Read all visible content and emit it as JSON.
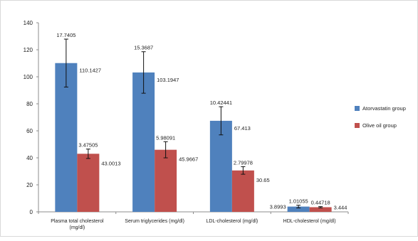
{
  "chart_data": {
    "type": "bar",
    "title": "",
    "xlabel": "",
    "ylabel": "",
    "ylim": [
      0,
      140
    ],
    "yticks": [
      0,
      20,
      40,
      60,
      80,
      100,
      120,
      140
    ],
    "grid": false,
    "legend_position": "right",
    "categories": [
      [
        "Plasma total cholesterol",
        "(mg/dl)"
      ],
      [
        "Serum triglycerides (mg/dl)"
      ],
      [
        "LDL-cholesterol (mg/dl)"
      ],
      [
        "HDL-cholesterol (mg/dl)"
      ]
    ],
    "series": [
      {
        "name": "Atorvastatin group",
        "color": "#4F81BD",
        "values": [
          110.1427,
          103.1947,
          67.413,
          3.8993
        ],
        "value_labels": [
          "110.1427",
          "103.1947",
          "67.413",
          "3.8993"
        ],
        "errors": [
          17.7405,
          15.3687,
          10.42441,
          1.01055
        ],
        "error_labels": [
          "17.7405",
          "15.3687",
          "10.42441",
          "1.01055"
        ]
      },
      {
        "name": "Olive oil group",
        "color": "#C0504D",
        "values": [
          43.0013,
          45.9667,
          30.65,
          3.444
        ],
        "value_labels": [
          "43.0013",
          "45.9667",
          "30.65",
          "3.444"
        ],
        "errors": [
          3.47505,
          5.98091,
          2.79978,
          0.44718
        ],
        "error_labels": [
          "3.47505",
          "5.98091",
          "2.79978",
          "0.44718"
        ]
      }
    ]
  }
}
